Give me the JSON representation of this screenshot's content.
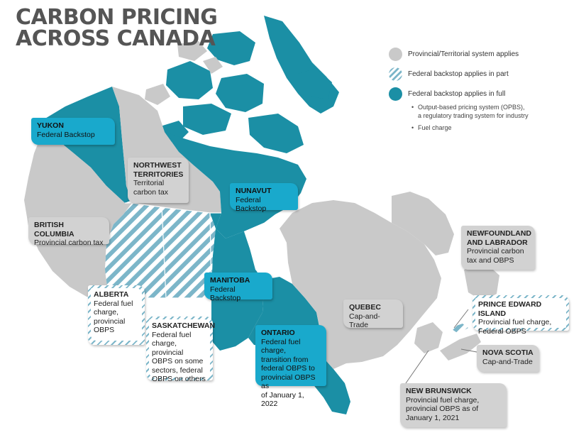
{
  "title": {
    "line1": "CARBON PRICING",
    "line2": "ACROSS CANADA"
  },
  "colors": {
    "provincial": "#c9c9c9",
    "federal_full": "#1b8fa5",
    "federal_part_stripe": "#7cb6c9",
    "callout_teal": "#19a9cc"
  },
  "legend": {
    "provincial": "Provincial/Territorial system applies",
    "federal_part": "Federal backstop applies in part",
    "federal_full": "Federal backstop applies in full",
    "sub_items": [
      {
        "bullet": "•",
        "text_line1": "Output-based pricing system (OPBS),",
        "text_line2": "a regulatory trading system for industry"
      },
      {
        "bullet": "•",
        "text_line1": "Fuel charge",
        "text_line2": ""
      }
    ]
  },
  "regions": {
    "yukon": {
      "name": "YUKON",
      "desc": "Federal Backstop",
      "status": "federal_full"
    },
    "northwest_territories": {
      "name_line1": "NORTHWEST",
      "name_line2": "TERRITORIES",
      "desc_line1": "Territorial",
      "desc_line2": "carbon tax",
      "status": "provincial"
    },
    "nunavut": {
      "name": "NUNAVUT",
      "desc": "Federal Backstop",
      "status": "federal_full"
    },
    "british_columbia": {
      "name": "BRITISH COLUMBIA",
      "desc": "Provincial carbon tax",
      "status": "provincial"
    },
    "alberta": {
      "name": "ALBERTA",
      "desc_lines": [
        "Federal fuel",
        "charge,",
        "provincial",
        "OBPS"
      ],
      "status": "federal_part"
    },
    "saskatchewan": {
      "name": "SASKATCHEWAN",
      "desc_lines": [
        "Federal fuel",
        "charge, provincial",
        "OBPS on some",
        "sectors, federal",
        "OBPS on others"
      ],
      "status": "federal_part"
    },
    "manitoba": {
      "name": "MANITOBA",
      "desc": "Federal Backstop",
      "status": "federal_full"
    },
    "ontario": {
      "name": "ONTARIO",
      "desc_lines": [
        "Federal fuel charge,",
        "transition from",
        "federal OBPS to",
        "provincial OBPS as",
        "of January 1, 2022"
      ],
      "status": "federal_full"
    },
    "quebec": {
      "name": "QUEBEC",
      "desc": "Cap-and-Trade",
      "status": "provincial"
    },
    "newfoundland_labrador": {
      "name_line1": "NEWFOUNDLAND",
      "name_line2": "AND LABRADOR",
      "desc_line1": "Provincial carbon",
      "desc_line2": "tax and OBPS",
      "status": "provincial"
    },
    "prince_edward_island": {
      "name": "PRINCE EDWARD ISLAND",
      "desc_line1": "Provincial fuel charge,",
      "desc_line2": "Federal OBPS",
      "status": "federal_part"
    },
    "nova_scotia": {
      "name": "NOVA SCOTIA",
      "desc": "Cap-and-Trade",
      "status": "provincial"
    },
    "new_brunswick": {
      "name": "NEW BRUNSWICK",
      "desc_lines": [
        "Provincial fuel charge,",
        "provincial OBPS as of",
        "January 1, 2021"
      ],
      "status": "provincial"
    }
  }
}
